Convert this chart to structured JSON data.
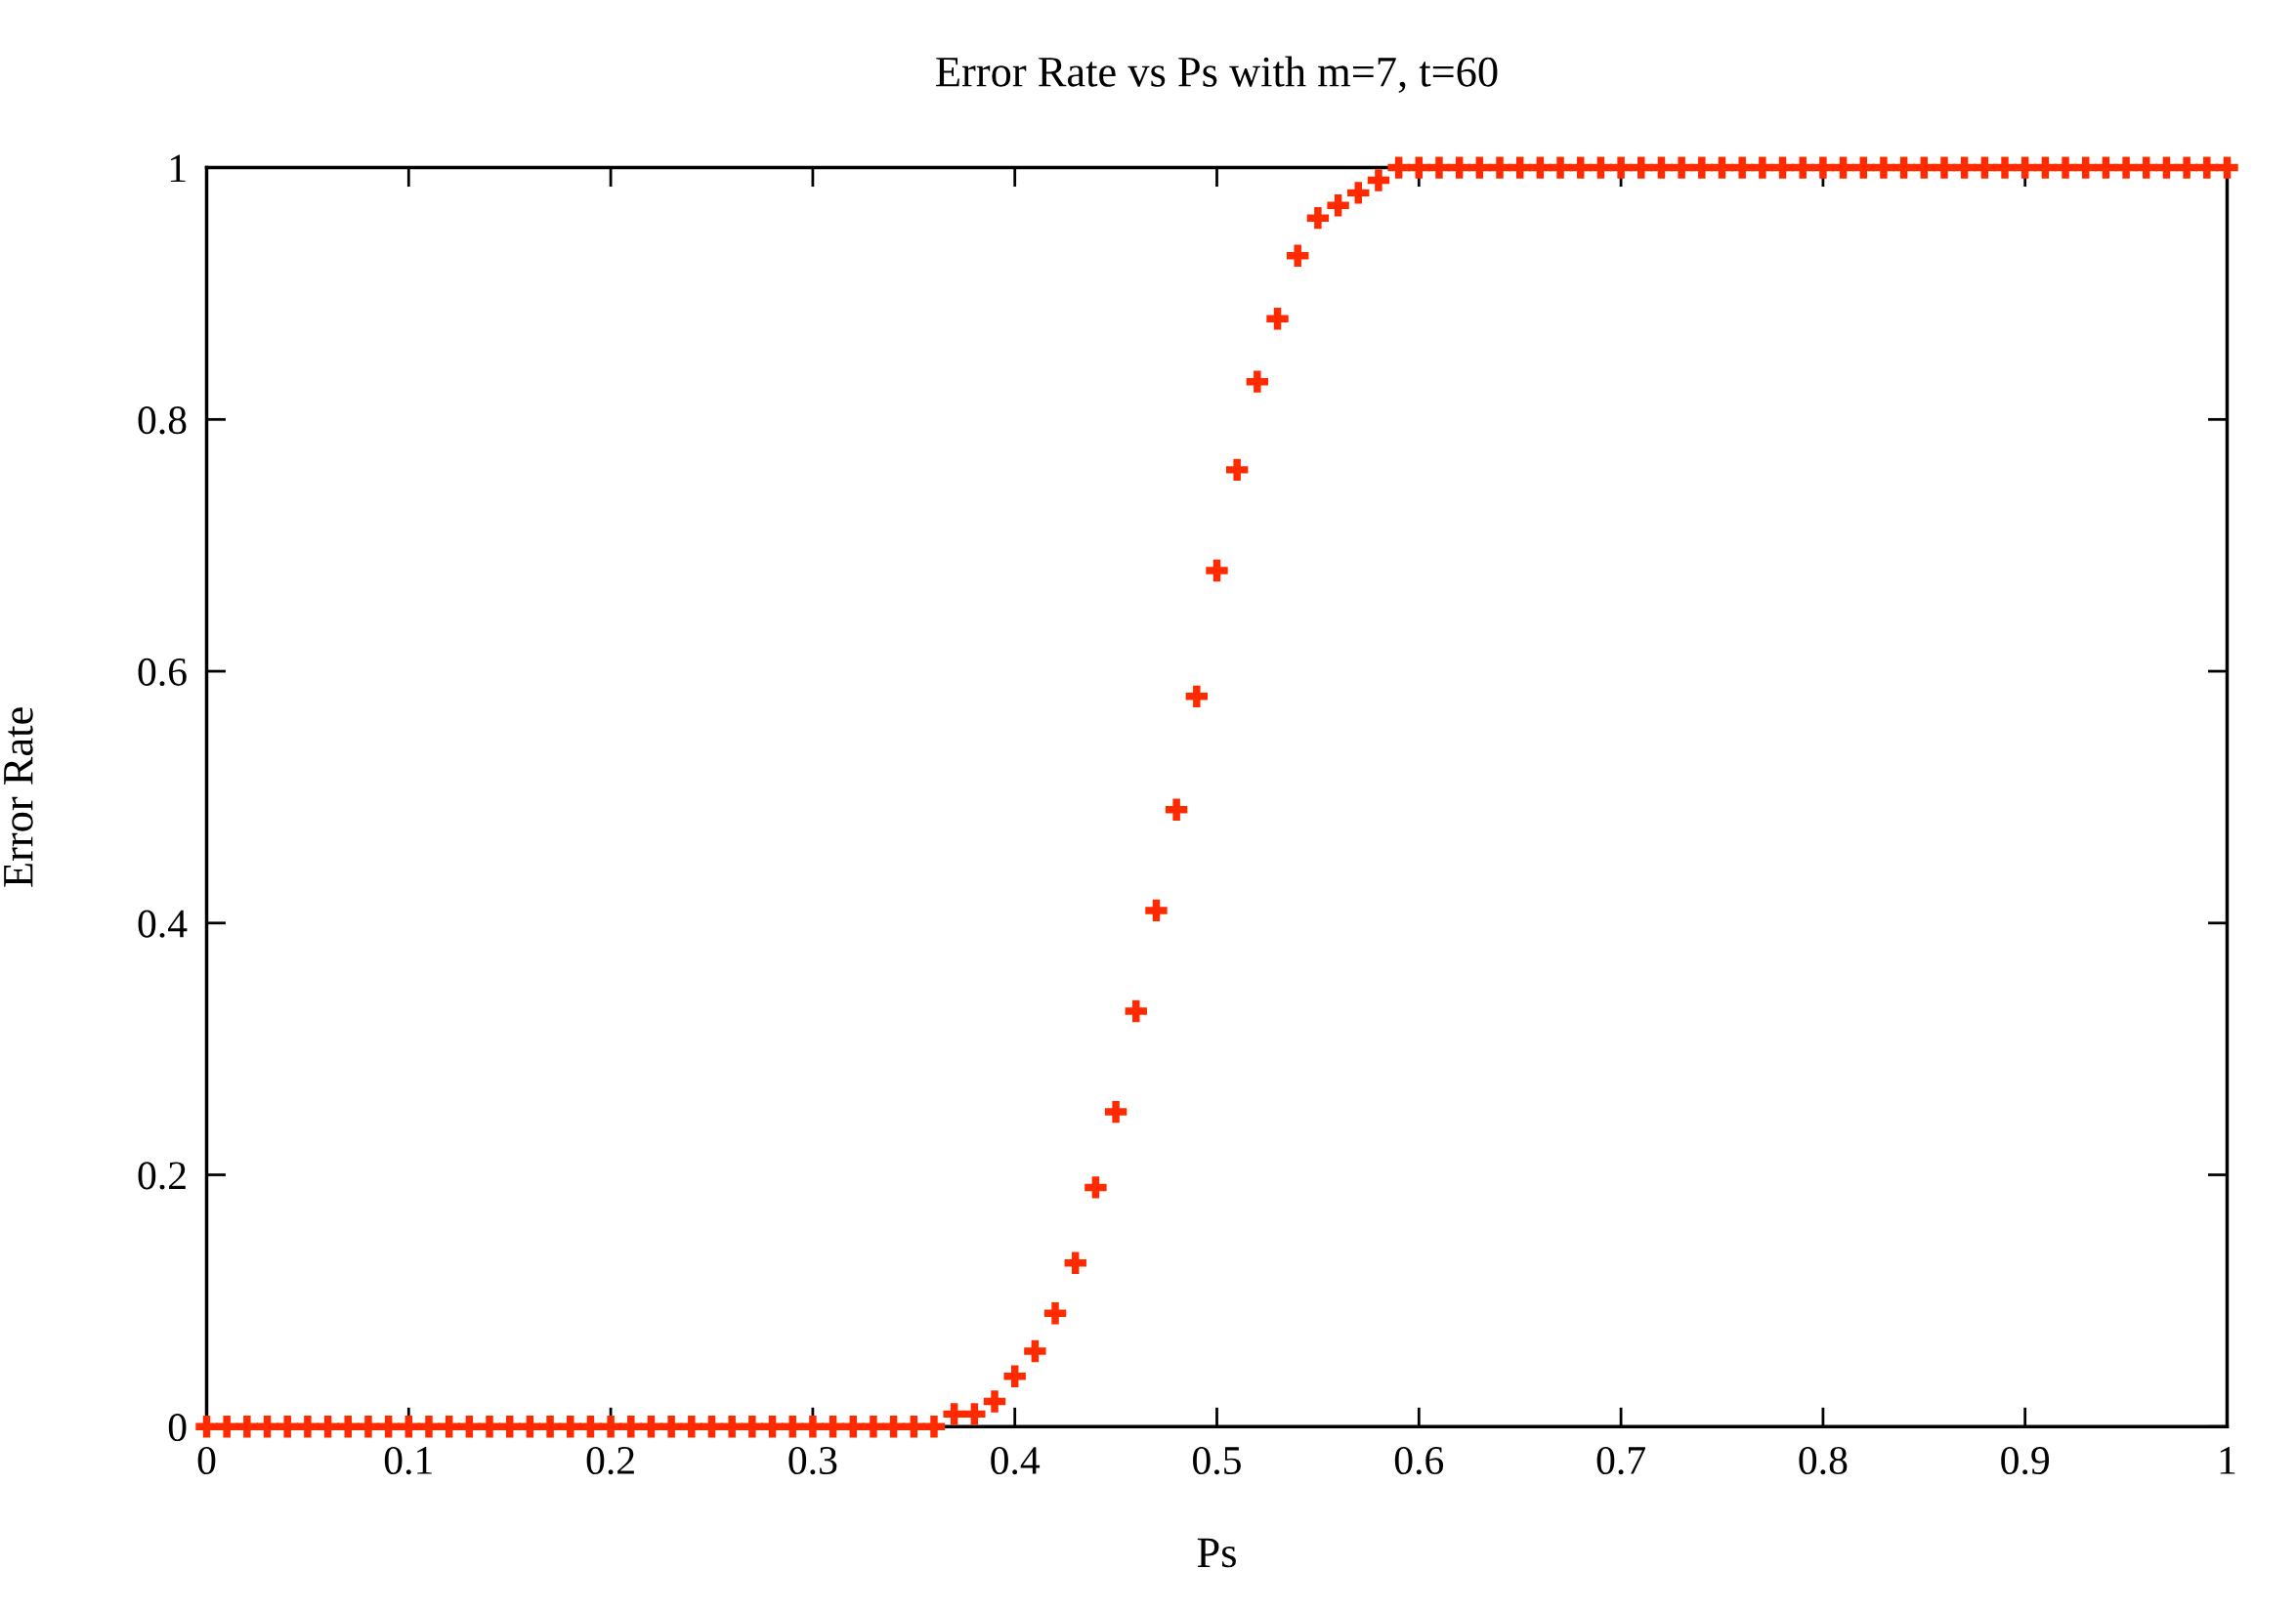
{
  "chart_data": {
    "type": "scatter",
    "title": "Error Rate vs Ps with m=7, t=60",
    "xlabel": "Ps",
    "ylabel": "Error Rate",
    "x": [
      0,
      0.01,
      0.02,
      0.03,
      0.04,
      0.05,
      0.06,
      0.07,
      0.08,
      0.09,
      0.1,
      0.11,
      0.12,
      0.13,
      0.14,
      0.15,
      0.16,
      0.17,
      0.18,
      0.19,
      0.2,
      0.21,
      0.22,
      0.23,
      0.24,
      0.25,
      0.26,
      0.27,
      0.28,
      0.29,
      0.3,
      0.31,
      0.32,
      0.33,
      0.34,
      0.35,
      0.36,
      0.37,
      0.38,
      0.39,
      0.4,
      0.41,
      0.42,
      0.43,
      0.44,
      0.45,
      0.46,
      0.47,
      0.48,
      0.49,
      0.5,
      0.51,
      0.52,
      0.53,
      0.54,
      0.55,
      0.56,
      0.57,
      0.58,
      0.59,
      0.6,
      0.61,
      0.62,
      0.63,
      0.64,
      0.65,
      0.66,
      0.67,
      0.68,
      0.69,
      0.7,
      0.71,
      0.72,
      0.73,
      0.74,
      0.75,
      0.76,
      0.77,
      0.78,
      0.79,
      0.8,
      0.81,
      0.82,
      0.83,
      0.84,
      0.85,
      0.86,
      0.87,
      0.88,
      0.89,
      0.9,
      0.91,
      0.92,
      0.93,
      0.94,
      0.95,
      0.96,
      0.97,
      0.98,
      0.99,
      1
    ],
    "series": [
      {
        "color": "#ff2a00",
        "values": [
          0,
          0,
          0,
          0,
          0,
          0,
          0,
          0,
          0,
          0,
          0,
          0,
          0,
          0,
          0,
          0,
          0,
          0,
          0,
          0,
          0,
          0,
          0,
          0,
          0,
          0,
          0,
          0,
          0,
          0,
          0,
          0,
          0,
          0,
          0,
          0,
          0,
          0.01,
          0.01,
          0.02,
          0.04,
          0.06,
          0.09,
          0.13,
          0.19,
          0.25,
          0.33,
          0.41,
          0.49,
          0.58,
          0.68,
          0.76,
          0.83,
          0.88,
          0.93,
          0.96,
          0.97,
          0.98,
          0.99,
          1,
          1,
          1,
          1,
          1,
          1,
          1,
          1,
          1,
          1,
          1,
          1,
          1,
          1,
          1,
          1,
          1,
          1,
          1,
          1,
          1,
          1,
          1,
          1,
          1,
          1,
          1,
          1,
          1,
          1,
          1,
          1,
          1,
          1,
          1,
          1,
          1,
          1,
          1,
          1,
          1,
          1
        ]
      }
    ],
    "xlim": [
      0,
      1
    ],
    "ylim": [
      0,
      1
    ],
    "xticks": [
      0,
      0.1,
      0.2,
      0.3,
      0.4,
      0.5,
      0.6,
      0.7,
      0.8,
      0.9,
      1
    ],
    "yticks": [
      0,
      0.2,
      0.4,
      0.6,
      0.8,
      1
    ],
    "marker": "cross"
  }
}
